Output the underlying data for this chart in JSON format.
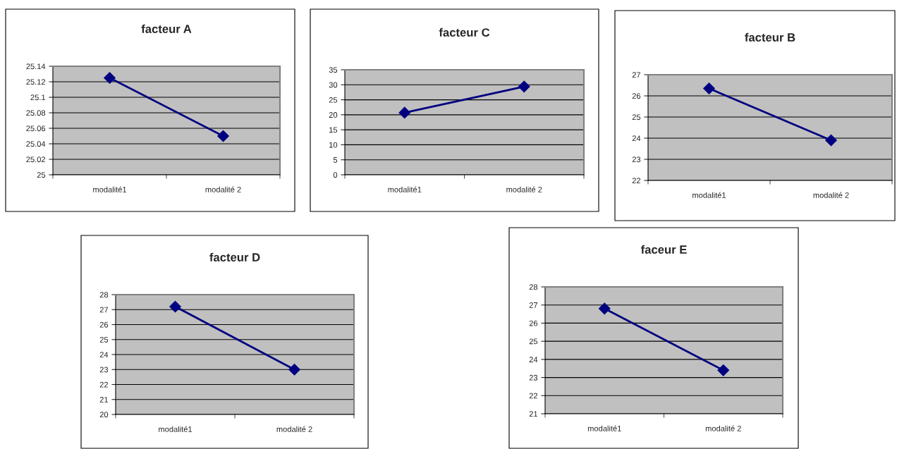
{
  "chart_data": [
    {
      "type": "line",
      "title": "facteur A",
      "categories": [
        "modalité1",
        "modalité 2"
      ],
      "series": [
        {
          "color": "#000080",
          "values": [
            25.125,
            25.05
          ]
        }
      ],
      "ylim": [
        25,
        25.14
      ],
      "yticks": [
        {
          "value": 25,
          "label": "25"
        },
        {
          "value": 25.02,
          "label": "25.02"
        },
        {
          "value": 25.04,
          "label": "25.04"
        },
        {
          "value": 25.06,
          "label": "25.06"
        },
        {
          "value": 25.08,
          "label": "25.08"
        },
        {
          "value": 25.1,
          "label": "25.1"
        },
        {
          "value": 25.12,
          "label": "25.12"
        },
        {
          "value": 25.14,
          "label": "25.14"
        }
      ],
      "grid": "y",
      "marker": "diamond",
      "line_style": "solid"
    },
    {
      "type": "line",
      "title": "facteur C",
      "categories": [
        "modalité1",
        "modalité 2"
      ],
      "series": [
        {
          "color": "#000080",
          "values": [
            20.7,
            29.4
          ]
        }
      ],
      "ylim": [
        0,
        35
      ],
      "yticks": [
        0,
        5,
        10,
        15,
        20,
        25,
        30,
        35
      ],
      "grid": "y",
      "marker": "diamond",
      "line_style": "solid"
    },
    {
      "type": "line",
      "title": "facteur B",
      "categories": [
        "modalité1",
        "modalité 2"
      ],
      "series": [
        {
          "color": "#000080",
          "values": [
            26.35,
            23.9
          ]
        }
      ],
      "ylim": [
        22,
        27
      ],
      "yticks": [
        22,
        23,
        24,
        25,
        26,
        27
      ],
      "grid": "y",
      "marker": "diamond",
      "line_style": "solid"
    },
    {
      "type": "line",
      "title": "facteur D",
      "categories": [
        "modalité1",
        "modalité 2"
      ],
      "series": [
        {
          "color": "#000080",
          "values": [
            27.2,
            23.0
          ]
        }
      ],
      "ylim": [
        20,
        28
      ],
      "yticks": [
        20,
        21,
        22,
        23,
        24,
        25,
        26,
        27,
        28
      ],
      "grid": "y",
      "marker": "diamond",
      "line_style": "solid"
    },
    {
      "type": "line",
      "title": "faceur E",
      "categories": [
        "modalité1",
        "modalité 2"
      ],
      "series": [
        {
          "color": "#000080",
          "values": [
            26.8,
            23.4
          ]
        }
      ],
      "ylim": [
        21,
        28
      ],
      "yticks": [
        21,
        22,
        23,
        24,
        25,
        26,
        27,
        28
      ],
      "grid": "y",
      "marker": "diamond",
      "line_style": "solid"
    }
  ]
}
